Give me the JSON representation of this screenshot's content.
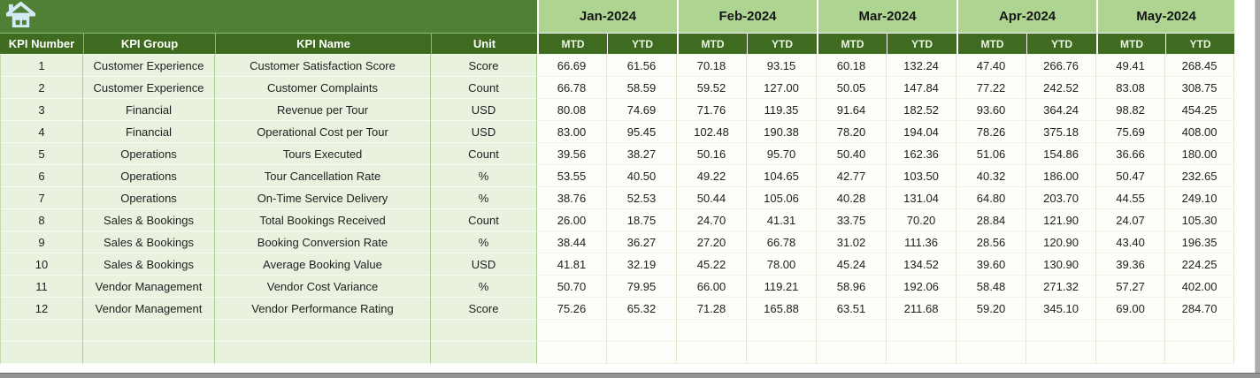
{
  "banner": {
    "home_icon_name": "home-icon"
  },
  "table": {
    "column_headers": [
      "KPI Number",
      "KPI Group",
      "KPI Name",
      "Unit"
    ],
    "months": [
      "Jan-2024",
      "Feb-2024",
      "Mar-2024",
      "Apr-2024",
      "May-2024"
    ],
    "period_headers": [
      "MTD",
      "YTD"
    ],
    "rows": [
      {
        "kpi_number": "1",
        "kpi_group": "Customer Experience",
        "kpi_name": "Customer Satisfaction Score",
        "unit": "Score",
        "values": [
          "66.69",
          "61.56",
          "70.18",
          "93.15",
          "60.18",
          "132.24",
          "47.40",
          "266.76",
          "49.41",
          "268.45"
        ]
      },
      {
        "kpi_number": "2",
        "kpi_group": "Customer Experience",
        "kpi_name": "Customer Complaints",
        "unit": "Count",
        "values": [
          "66.78",
          "58.59",
          "59.52",
          "127.00",
          "50.05",
          "147.84",
          "77.22",
          "242.52",
          "83.08",
          "308.75"
        ]
      },
      {
        "kpi_number": "3",
        "kpi_group": "Financial",
        "kpi_name": "Revenue per Tour",
        "unit": "USD",
        "values": [
          "80.08",
          "74.69",
          "71.76",
          "119.35",
          "91.64",
          "182.52",
          "93.60",
          "364.24",
          "98.82",
          "454.25"
        ]
      },
      {
        "kpi_number": "4",
        "kpi_group": "Financial",
        "kpi_name": "Operational Cost per Tour",
        "unit": "USD",
        "values": [
          "83.00",
          "95.45",
          "102.48",
          "190.38",
          "78.20",
          "194.04",
          "78.26",
          "375.18",
          "75.69",
          "408.00"
        ]
      },
      {
        "kpi_number": "5",
        "kpi_group": "Operations",
        "kpi_name": "Tours Executed",
        "unit": "Count",
        "values": [
          "39.56",
          "38.27",
          "50.16",
          "95.70",
          "50.40",
          "162.36",
          "51.06",
          "154.86",
          "36.66",
          "180.00"
        ]
      },
      {
        "kpi_number": "6",
        "kpi_group": "Operations",
        "kpi_name": "Tour Cancellation Rate",
        "unit": "%",
        "values": [
          "53.55",
          "40.50",
          "49.22",
          "104.65",
          "42.77",
          "103.50",
          "40.32",
          "186.00",
          "50.47",
          "232.65"
        ]
      },
      {
        "kpi_number": "7",
        "kpi_group": "Operations",
        "kpi_name": "On-Time Service Delivery",
        "unit": "%",
        "values": [
          "38.76",
          "52.53",
          "50.44",
          "105.06",
          "40.28",
          "131.04",
          "64.80",
          "203.70",
          "44.55",
          "249.10"
        ]
      },
      {
        "kpi_number": "8",
        "kpi_group": "Sales & Bookings",
        "kpi_name": "Total Bookings Received",
        "unit": "Count",
        "values": [
          "26.00",
          "18.75",
          "24.70",
          "41.31",
          "33.75",
          "70.20",
          "28.84",
          "121.90",
          "24.07",
          "105.30"
        ]
      },
      {
        "kpi_number": "9",
        "kpi_group": "Sales & Bookings",
        "kpi_name": "Booking Conversion Rate",
        "unit": "%",
        "values": [
          "38.44",
          "36.27",
          "27.20",
          "66.78",
          "31.02",
          "111.36",
          "28.56",
          "120.90",
          "43.40",
          "196.35"
        ]
      },
      {
        "kpi_number": "10",
        "kpi_group": "Sales & Bookings",
        "kpi_name": "Average Booking Value",
        "unit": "USD",
        "values": [
          "41.81",
          "32.19",
          "45.22",
          "78.00",
          "45.24",
          "134.52",
          "39.60",
          "130.90",
          "39.36",
          "224.25"
        ]
      },
      {
        "kpi_number": "11",
        "kpi_group": "Vendor Management",
        "kpi_name": "Vendor Cost Variance",
        "unit": "%",
        "values": [
          "50.70",
          "79.95",
          "66.00",
          "119.21",
          "58.96",
          "192.06",
          "58.48",
          "271.32",
          "57.27",
          "402.00"
        ]
      },
      {
        "kpi_number": "12",
        "kpi_group": "Vendor Management",
        "kpi_name": "Vendor Performance Rating",
        "unit": "Score",
        "values": [
          "75.26",
          "65.32",
          "71.28",
          "165.88",
          "63.51",
          "211.68",
          "59.20",
          "345.10",
          "69.00",
          "284.70"
        ]
      }
    ],
    "empty_row_count": 2
  },
  "colors": {
    "banner_green": "#4f8033",
    "header_dark_green": "#3e6b20",
    "month_header_green": "#aed492",
    "label_cell_bg": "#e8f2df",
    "value_cell_bg": "#fdfdf9",
    "home_icon_blue": "#d3eaf5",
    "window_chrome_gray": "#949494"
  }
}
